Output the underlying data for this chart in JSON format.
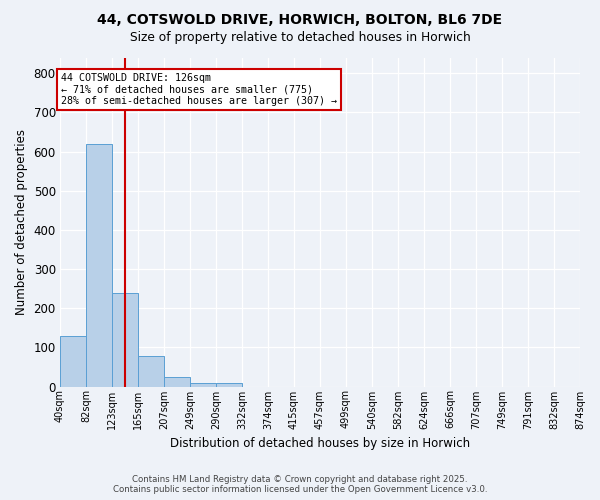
{
  "title1": "44, COTSWOLD DRIVE, HORWICH, BOLTON, BL6 7DE",
  "title2": "Size of property relative to detached houses in Horwich",
  "xlabel": "Distribution of detached houses by size in Horwich",
  "ylabel": "Number of detached properties",
  "bar_values": [
    130,
    620,
    240,
    78,
    25,
    10,
    8,
    0,
    0,
    0,
    0,
    0,
    0,
    0,
    0,
    0,
    0,
    0,
    0,
    0
  ],
  "bin_labels": [
    "40sqm",
    "82sqm",
    "123sqm",
    "165sqm",
    "207sqm",
    "249sqm",
    "290sqm",
    "332sqm",
    "374sqm",
    "415sqm",
    "457sqm",
    "499sqm",
    "540sqm",
    "582sqm",
    "624sqm",
    "666sqm",
    "707sqm",
    "749sqm",
    "791sqm",
    "832sqm",
    "874sqm"
  ],
  "bar_color": "#b8d0e8",
  "bar_edge_color": "#5a9fd4",
  "vline_color": "#cc0000",
  "annotation_text": "44 COTSWOLD DRIVE: 126sqm\n← 71% of detached houses are smaller (775)\n28% of semi-detached houses are larger (307) →",
  "annotation_box_color": "#cc0000",
  "background_color": "#eef2f8",
  "grid_color": "#ffffff",
  "ylim": [
    0,
    840
  ],
  "yticks": [
    0,
    100,
    200,
    300,
    400,
    500,
    600,
    700,
    800
  ],
  "footer1": "Contains HM Land Registry data © Crown copyright and database right 2025.",
  "footer2": "Contains public sector information licensed under the Open Government Licence v3.0."
}
